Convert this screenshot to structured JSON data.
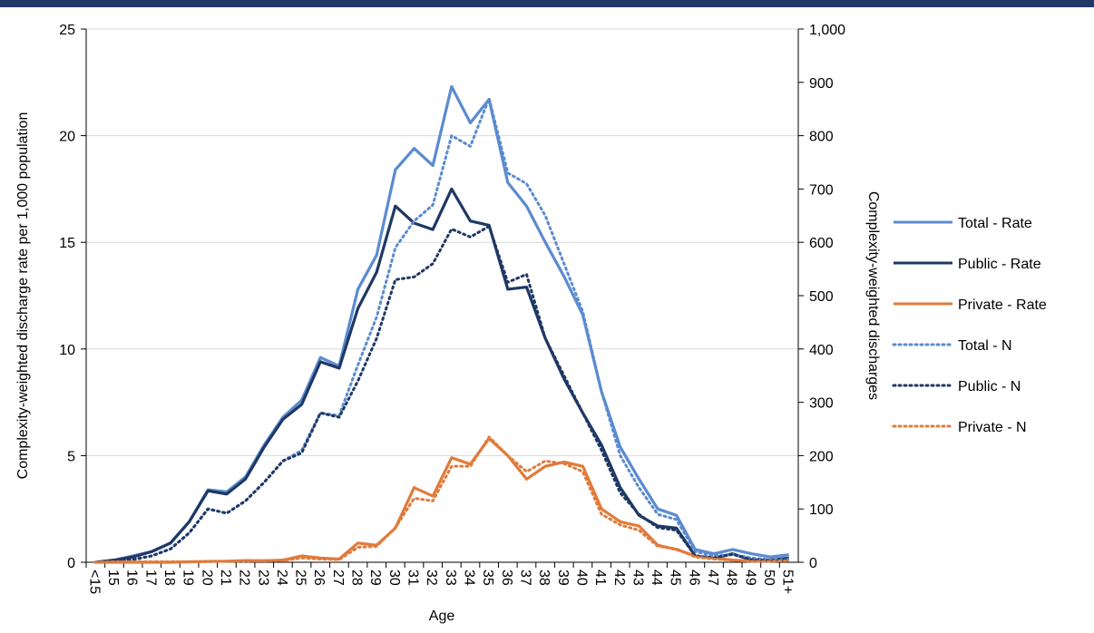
{
  "chart_data": {
    "type": "line",
    "x_label": "Age",
    "y_label": "Complexity-weighted discharge rate per 1,000 population",
    "y2_label": "Complexity-weighted discharges",
    "categories": [
      "<15",
      "15",
      "16",
      "17",
      "18",
      "19",
      "20",
      "21",
      "22",
      "23",
      "24",
      "25",
      "26",
      "27",
      "28",
      "29",
      "30",
      "31",
      "32",
      "33",
      "34",
      "35",
      "36",
      "37",
      "38",
      "39",
      "40",
      "41",
      "42",
      "43",
      "44",
      "45",
      "46",
      "47",
      "48",
      "49",
      "50",
      "51+"
    ],
    "ylim": [
      0,
      25
    ],
    "yticks": [
      0,
      5,
      10,
      15,
      20,
      25
    ],
    "y2lim": [
      0,
      1000
    ],
    "y2ticks": [
      0,
      100,
      200,
      300,
      400,
      500,
      600,
      700,
      800,
      900,
      {
        "value": 1000,
        "label": "1,000"
      }
    ],
    "grid": true,
    "legend": "right",
    "series": [
      {
        "name": "Total - Rate",
        "color": "#5b8bd0",
        "style": "solid",
        "values": [
          0,
          0.1,
          0.3,
          0.5,
          0.9,
          1.9,
          3.4,
          3.3,
          4.0,
          5.5,
          6.8,
          7.6,
          9.6,
          9.2,
          12.8,
          14.4,
          18.4,
          19.4,
          18.6,
          22.3,
          20.6,
          21.7,
          17.8,
          16.7,
          15.0,
          13.4,
          11.6,
          8.0,
          5.4,
          3.9,
          2.5,
          2.2,
          0.6,
          0.4,
          0.6,
          0.4,
          0.25,
          0.35
        ]
      },
      {
        "name": "Public - Rate",
        "color": "#1f3864",
        "style": "solid",
        "values": [
          0,
          0.1,
          0.25,
          0.5,
          0.9,
          1.9,
          3.35,
          3.2,
          3.9,
          5.4,
          6.7,
          7.4,
          9.4,
          9.1,
          11.9,
          13.6,
          16.7,
          15.9,
          15.6,
          17.5,
          16.0,
          15.8,
          12.8,
          12.9,
          10.5,
          8.6,
          7.0,
          5.5,
          3.5,
          2.2,
          1.7,
          1.6,
          0.3,
          0.2,
          0.4,
          0.1,
          0.1,
          0.2
        ]
      },
      {
        "name": "Private - Rate",
        "color": "#e07b3c",
        "style": "solid",
        "values": [
          0,
          0,
          0,
          0,
          0,
          0.02,
          0.04,
          0.05,
          0.08,
          0.07,
          0.1,
          0.3,
          0.2,
          0.15,
          0.9,
          0.8,
          1.6,
          3.5,
          3.1,
          4.9,
          4.6,
          5.8,
          5.0,
          3.9,
          4.5,
          4.7,
          4.5,
          2.5,
          1.9,
          1.7,
          0.8,
          0.6,
          0.3,
          0.2,
          0.1,
          0.05,
          0.05,
          0.1
        ]
      },
      {
        "name": "Total - N",
        "color": "#5b8bd0",
        "style": "dotted",
        "axis": "y2",
        "values": [
          0,
          2,
          5,
          12,
          25,
          55,
          100,
          92,
          115,
          150,
          190,
          210,
          280,
          275,
          370,
          460,
          590,
          640,
          670,
          800,
          780,
          870,
          730,
          710,
          650,
          560,
          470,
          320,
          200,
          140,
          90,
          80,
          20,
          12,
          15,
          8,
          5,
          5
        ]
      },
      {
        "name": "Public - N",
        "color": "#1f3864",
        "style": "dotted",
        "axis": "y2",
        "values": [
          0,
          2,
          5,
          12,
          25,
          55,
          100,
          92,
          115,
          150,
          190,
          205,
          280,
          272,
          340,
          420,
          530,
          535,
          560,
          625,
          610,
          630,
          525,
          540,
          420,
          350,
          280,
          210,
          130,
          90,
          65,
          60,
          12,
          8,
          15,
          5,
          3,
          5
        ]
      },
      {
        "name": "Private - N",
        "color": "#e07b3c",
        "style": "dotted",
        "axis": "y2",
        "values": [
          0,
          1,
          1,
          1,
          1,
          1,
          1,
          2,
          2,
          3,
          3,
          8,
          6,
          5,
          28,
          30,
          65,
          120,
          115,
          180,
          180,
          235,
          200,
          170,
          190,
          185,
          170,
          90,
          70,
          60,
          30,
          25,
          10,
          6,
          4,
          2,
          2,
          3
        ]
      }
    ]
  }
}
